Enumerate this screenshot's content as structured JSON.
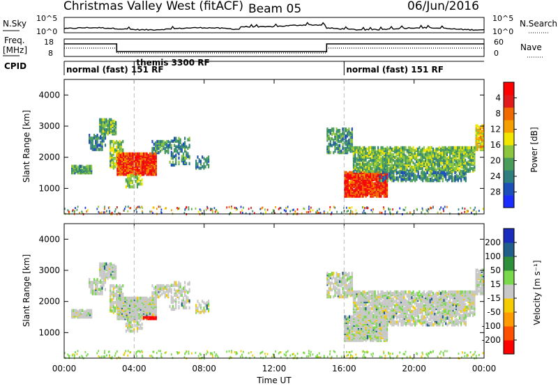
{
  "header": {
    "station": "Christmas Valley West (fitACF)",
    "beam": "Beam 05",
    "date": "06/Jun/2016"
  },
  "noise_panel": {
    "left_label": "N.Sky",
    "left_ticks": [
      "10^5",
      "10^0"
    ],
    "right_label": "N.Search",
    "right_ticks": [
      "10^5",
      "10^0"
    ]
  },
  "freq_panel": {
    "left_label_line1": "Freq.",
    "left_label_line2": "[MHz]",
    "left_ticks": [
      "18",
      "8"
    ],
    "right_label": "Nave",
    "right_ticks": [
      "60",
      "0"
    ]
  },
  "cpid": {
    "label": "CPID",
    "modes": [
      {
        "label": "normal (fast) 151 RF",
        "start_h": 0,
        "end_h": 4
      },
      {
        "label": "themis 3300 RF",
        "start_h": 4,
        "end_h": 16
      },
      {
        "label": "normal (fast) 151 RF",
        "start_h": 16,
        "end_h": 24
      }
    ]
  },
  "chart_data": [
    {
      "type": "heatmap",
      "name": "power",
      "ylabel": "Slant Range [km]",
      "yticks": [
        "1000",
        "2000",
        "3000",
        "4000"
      ],
      "ylim": [
        180,
        4500
      ],
      "xlim_hours": [
        0,
        24
      ],
      "colorbar": {
        "label": "Power [dB]",
        "ticks": [
          "4",
          "8",
          "12",
          "16",
          "20",
          "24",
          "28"
        ],
        "range": [
          0,
          32
        ],
        "colors": [
          "#1a2cff",
          "#1d4fb8",
          "#2f7f7f",
          "#4a9c5a",
          "#8cc63f",
          "#f2e600",
          "#f5a000",
          "#f06a00",
          "#e31a1c",
          "#ff0000"
        ]
      }
    },
    {
      "type": "heatmap",
      "name": "velocity",
      "ylabel": "Slant Range [km]",
      "yticks": [
        "1000",
        "2000",
        "3000",
        "4000"
      ],
      "ylim": [
        180,
        4500
      ],
      "xlim_hours": [
        0,
        24
      ],
      "colorbar": {
        "label": "Velocity [m s⁻¹]",
        "ticks": [
          "200",
          "100",
          "50",
          "15",
          "-15",
          "-50",
          "-100",
          "-200"
        ],
        "range": [
          -250,
          250
        ],
        "colors": [
          "#ff0000",
          "#ff5000",
          "#ff9a00",
          "#f5cc00",
          "#c8c8c8",
          "#79d94b",
          "#2e8f3a",
          "#215f8a",
          "#1a2cbd"
        ]
      }
    }
  ],
  "xaxis": {
    "ticks": [
      "00:00",
      "04:00",
      "08:00",
      "12:00",
      "16:00",
      "20:00",
      "00:00"
    ],
    "label": "Time UT"
  }
}
